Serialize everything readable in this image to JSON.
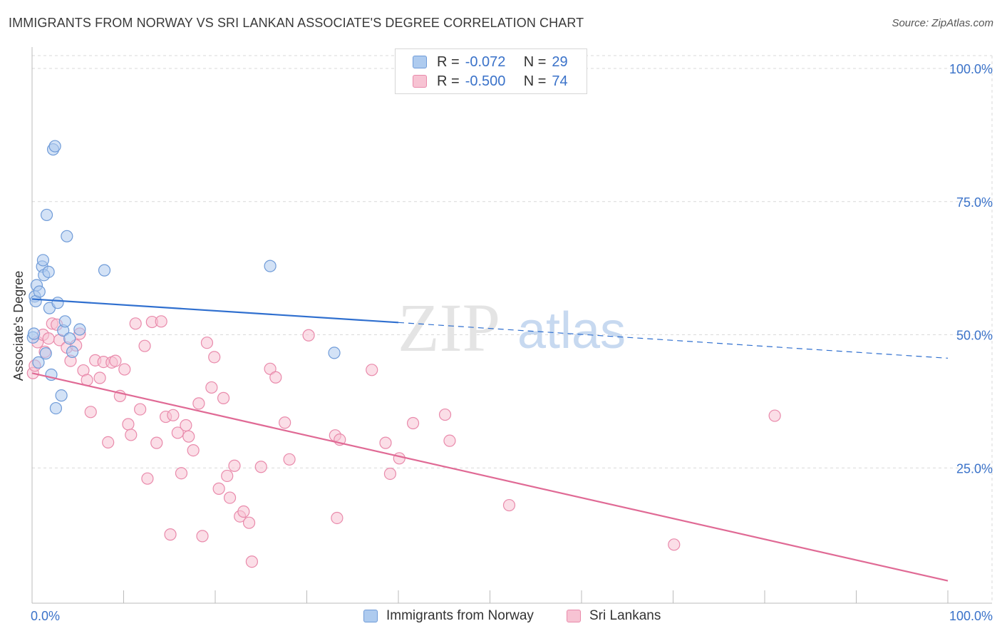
{
  "title": "IMMIGRANTS FROM NORWAY VS SRI LANKAN ASSOCIATE'S DEGREE CORRELATION CHART",
  "source": "Source: ZipAtlas.com",
  "watermark": {
    "zip": "ZIP",
    "atlas": "atlas"
  },
  "legend": {
    "rows": [
      {
        "r_label": "R =",
        "r_value": "-0.072",
        "n_label": "N =",
        "n_value": "29"
      },
      {
        "r_label": "R =",
        "r_value": "-0.500",
        "n_label": "N =",
        "n_value": "74"
      }
    ]
  },
  "bottom_legend": [
    "Immigrants from Norway",
    "Sri Lankans"
  ],
  "colors": {
    "norway_fill": "#aecbef",
    "norway_stroke": "#6f9bd8",
    "norway_line": "#2f6fcf",
    "srilanka_fill": "#f7c3d3",
    "srilanka_stroke": "#e98aab",
    "srilanka_line": "#e06a95",
    "axis_label": "#3a72c9",
    "grid": "#d9d9d9"
  },
  "chart_data": {
    "type": "scatter",
    "title": "IMMIGRANTS FROM NORWAY VS SRI LANKAN ASSOCIATE'S DEGREE CORRELATION CHART",
    "xlabel": "",
    "ylabel": "Associate's Degree",
    "xlim": [
      0,
      100
    ],
    "ylim": [
      0,
      100
    ],
    "x_tick_labels": [
      "0.0%",
      "100.0%"
    ],
    "y_tick_labels": [
      "25.0%",
      "50.0%",
      "75.0%",
      "100.0%"
    ],
    "y_ticks": [
      25,
      50,
      75,
      100
    ],
    "grid": true,
    "legend_position": "top-center",
    "series": [
      {
        "name": "Immigrants from Norway",
        "r": -0.072,
        "n": 29,
        "trend": {
          "x": [
            0,
            40,
            100
          ],
          "y": [
            56.7,
            52.3,
            45.6
          ],
          "solid_until": 40
        },
        "points": [
          {
            "x": 0.1,
            "y": 49.5
          },
          {
            "x": 0.3,
            "y": 57.2
          },
          {
            "x": 0.4,
            "y": 56.3
          },
          {
            "x": 0.5,
            "y": 59.3
          },
          {
            "x": 0.7,
            "y": 44.8
          },
          {
            "x": 0.8,
            "y": 58.1
          },
          {
            "x": 1.1,
            "y": 62.8
          },
          {
            "x": 1.2,
            "y": 64.0
          },
          {
            "x": 1.3,
            "y": 61.2
          },
          {
            "x": 1.5,
            "y": 46.5
          },
          {
            "x": 1.6,
            "y": 72.5
          },
          {
            "x": 1.8,
            "y": 61.8
          },
          {
            "x": 1.9,
            "y": 55.0
          },
          {
            "x": 2.1,
            "y": 42.5
          },
          {
            "x": 2.3,
            "y": 84.8
          },
          {
            "x": 2.5,
            "y": 85.4
          },
          {
            "x": 2.6,
            "y": 36.2
          },
          {
            "x": 2.8,
            "y": 56.0
          },
          {
            "x": 3.2,
            "y": 38.6
          },
          {
            "x": 3.4,
            "y": 50.8
          },
          {
            "x": 3.6,
            "y": 52.5
          },
          {
            "x": 3.8,
            "y": 68.5
          },
          {
            "x": 4.1,
            "y": 49.3
          },
          {
            "x": 4.4,
            "y": 46.8
          },
          {
            "x": 5.2,
            "y": 51.0
          },
          {
            "x": 7.9,
            "y": 62.1
          },
          {
            "x": 26.0,
            "y": 62.9
          },
          {
            "x": 33.0,
            "y": 46.6
          },
          {
            "x": 0.2,
            "y": 50.2
          }
        ]
      },
      {
        "name": "Sri Lankans",
        "r": -0.5,
        "n": 74,
        "trend": {
          "x": [
            0,
            100
          ],
          "y": [
            42.8,
            3.8
          ]
        },
        "points": [
          {
            "x": 0.1,
            "y": 42.8
          },
          {
            "x": 0.6,
            "y": 48.6
          },
          {
            "x": 1.2,
            "y": 50.0
          },
          {
            "x": 1.8,
            "y": 49.3
          },
          {
            "x": 2.2,
            "y": 52.1
          },
          {
            "x": 2.7,
            "y": 51.9
          },
          {
            "x": 3.0,
            "y": 49.0
          },
          {
            "x": 3.8,
            "y": 47.6
          },
          {
            "x": 4.2,
            "y": 45.1
          },
          {
            "x": 4.8,
            "y": 48.0
          },
          {
            "x": 5.2,
            "y": 50.2
          },
          {
            "x": 5.6,
            "y": 43.3
          },
          {
            "x": 6.0,
            "y": 41.5
          },
          {
            "x": 6.4,
            "y": 35.5
          },
          {
            "x": 6.9,
            "y": 45.2
          },
          {
            "x": 7.4,
            "y": 41.9
          },
          {
            "x": 7.8,
            "y": 44.9
          },
          {
            "x": 8.3,
            "y": 29.8
          },
          {
            "x": 8.7,
            "y": 44.8
          },
          {
            "x": 9.1,
            "y": 45.1
          },
          {
            "x": 9.6,
            "y": 38.5
          },
          {
            "x": 10.1,
            "y": 43.5
          },
          {
            "x": 10.5,
            "y": 33.2
          },
          {
            "x": 10.8,
            "y": 31.2
          },
          {
            "x": 11.3,
            "y": 52.1
          },
          {
            "x": 11.8,
            "y": 36.0
          },
          {
            "x": 12.3,
            "y": 47.9
          },
          {
            "x": 12.6,
            "y": 23.0
          },
          {
            "x": 13.1,
            "y": 52.4
          },
          {
            "x": 13.6,
            "y": 29.7
          },
          {
            "x": 14.1,
            "y": 52.5
          },
          {
            "x": 14.6,
            "y": 34.6
          },
          {
            "x": 15.1,
            "y": 12.5
          },
          {
            "x": 15.4,
            "y": 34.9
          },
          {
            "x": 15.9,
            "y": 31.6
          },
          {
            "x": 16.3,
            "y": 24.0
          },
          {
            "x": 16.8,
            "y": 33.0
          },
          {
            "x": 17.1,
            "y": 30.9
          },
          {
            "x": 17.6,
            "y": 28.3
          },
          {
            "x": 18.2,
            "y": 37.1
          },
          {
            "x": 18.6,
            "y": 12.2
          },
          {
            "x": 19.1,
            "y": 48.5
          },
          {
            "x": 19.6,
            "y": 40.1
          },
          {
            "x": 19.9,
            "y": 45.8
          },
          {
            "x": 20.4,
            "y": 21.1
          },
          {
            "x": 20.9,
            "y": 38.1
          },
          {
            "x": 21.3,
            "y": 23.5
          },
          {
            "x": 21.6,
            "y": 19.4
          },
          {
            "x": 22.1,
            "y": 25.4
          },
          {
            "x": 22.7,
            "y": 15.9
          },
          {
            "x": 23.1,
            "y": 16.8
          },
          {
            "x": 23.7,
            "y": 14.7
          },
          {
            "x": 24.0,
            "y": 7.4
          },
          {
            "x": 25.0,
            "y": 25.2
          },
          {
            "x": 26.0,
            "y": 43.6
          },
          {
            "x": 26.6,
            "y": 42.0
          },
          {
            "x": 27.6,
            "y": 33.5
          },
          {
            "x": 28.1,
            "y": 26.6
          },
          {
            "x": 30.2,
            "y": 49.9
          },
          {
            "x": 33.1,
            "y": 31.1
          },
          {
            "x": 33.6,
            "y": 30.3
          },
          {
            "x": 33.3,
            "y": 15.6
          },
          {
            "x": 37.1,
            "y": 43.4
          },
          {
            "x": 38.6,
            "y": 29.7
          },
          {
            "x": 39.1,
            "y": 23.9
          },
          {
            "x": 40.1,
            "y": 26.8
          },
          {
            "x": 41.6,
            "y": 33.4
          },
          {
            "x": 45.1,
            "y": 35.0
          },
          {
            "x": 45.6,
            "y": 30.1
          },
          {
            "x": 52.1,
            "y": 18.0
          },
          {
            "x": 70.1,
            "y": 10.6
          },
          {
            "x": 81.1,
            "y": 34.8
          },
          {
            "x": 0.3,
            "y": 44.2
          },
          {
            "x": 1.4,
            "y": 46.8
          }
        ]
      }
    ]
  }
}
